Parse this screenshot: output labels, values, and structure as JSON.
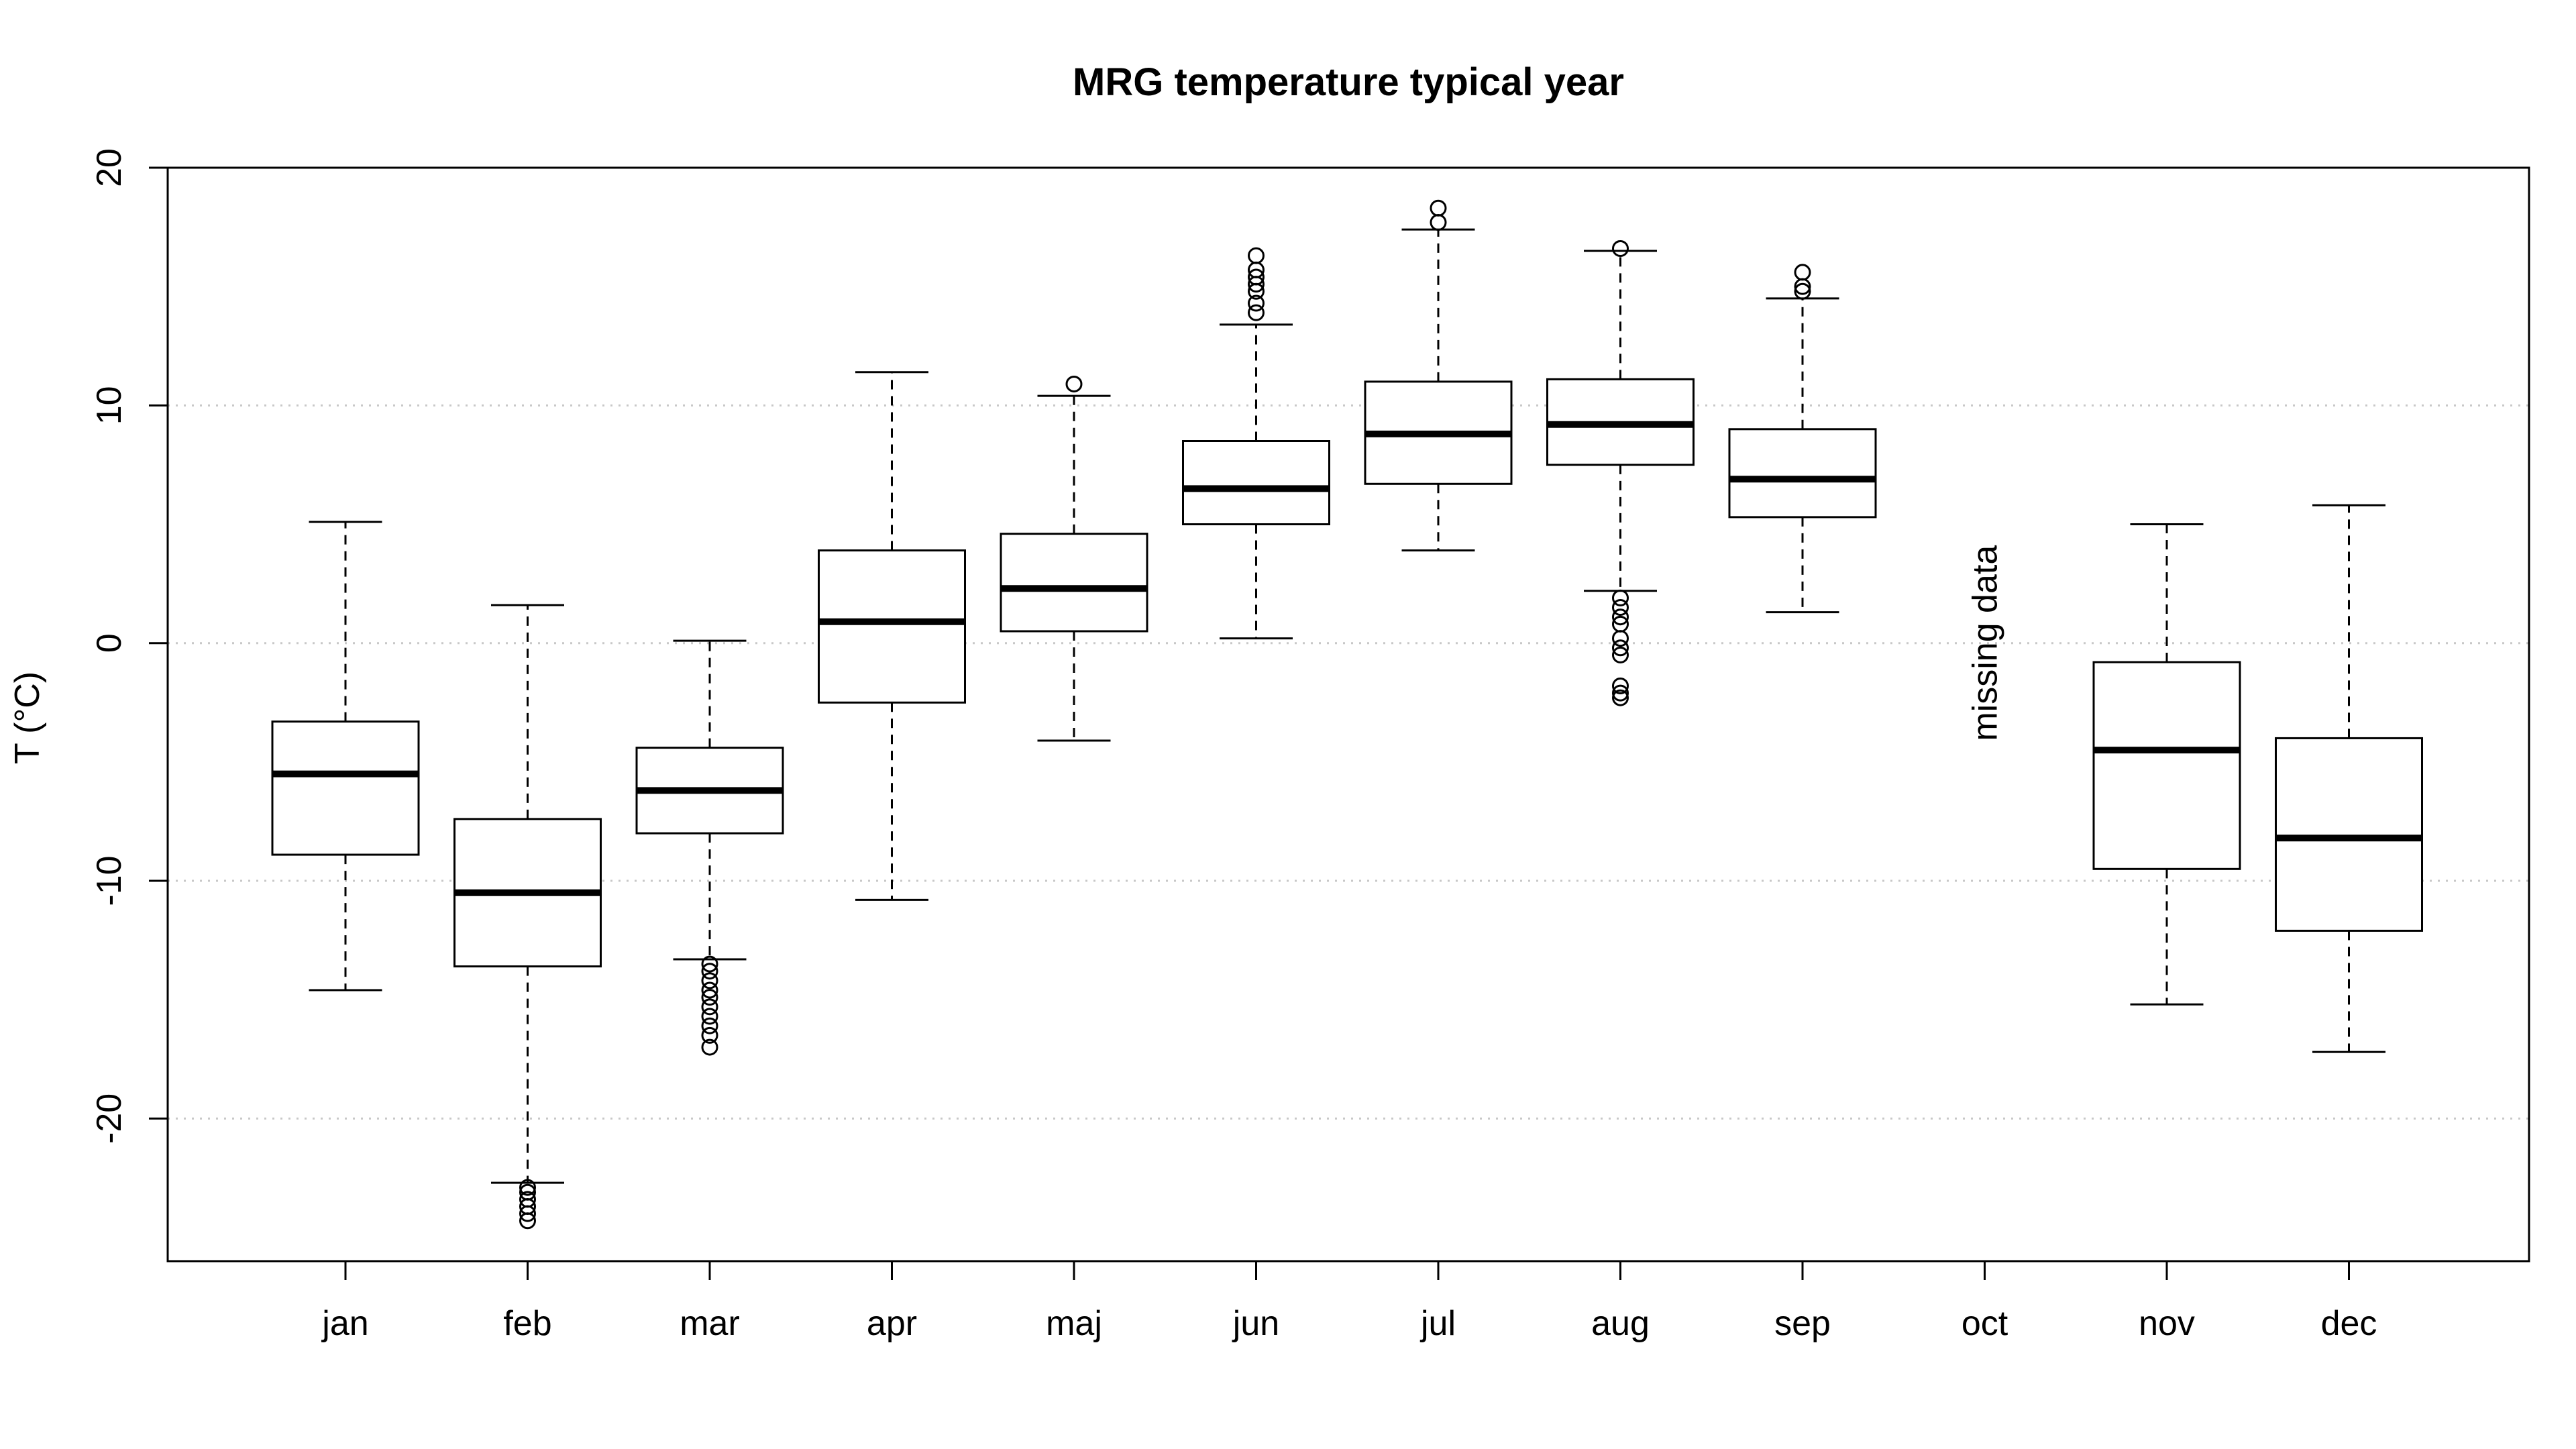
{
  "chart_data": {
    "type": "boxplot",
    "title": "MRG temperature typical year",
    "xlabel": "",
    "ylabel": "T (°C)",
    "ylim": [
      -26,
      20
    ],
    "yticks": [
      20,
      10,
      0,
      -10,
      -20
    ],
    "grid": "horizontal dotted",
    "categories": [
      "jan",
      "feb",
      "mar",
      "apr",
      "maj",
      "jun",
      "jul",
      "aug",
      "sep",
      "oct",
      "nov",
      "dec"
    ],
    "boxes": [
      {
        "month": "jan",
        "whisker_low": -14.6,
        "q1": -8.9,
        "median": -5.5,
        "q3": -3.3,
        "whisker_high": 5.1,
        "outliers": []
      },
      {
        "month": "feb",
        "whisker_low": -22.7,
        "q1": -13.6,
        "median": -10.5,
        "q3": -7.4,
        "whisker_high": 1.6,
        "outliers": [
          -22.9,
          -23.1,
          -23.4,
          -23.7,
          -24.0,
          -24.3
        ]
      },
      {
        "month": "mar",
        "whisker_low": -13.3,
        "q1": -8.0,
        "median": -6.2,
        "q3": -4.4,
        "whisker_high": 0.1,
        "outliers": [
          -13.5,
          -13.8,
          -14.2,
          -14.6,
          -14.9,
          -15.3,
          -15.7,
          -16.1,
          -16.5,
          -17.0
        ]
      },
      {
        "month": "apr",
        "whisker_low": -10.8,
        "q1": -2.5,
        "median": 0.9,
        "q3": 3.9,
        "whisker_high": 11.4,
        "outliers": []
      },
      {
        "month": "maj",
        "whisker_low": -4.1,
        "q1": 0.5,
        "median": 2.3,
        "q3": 4.6,
        "whisker_high": 10.4,
        "outliers": [
          10.9
        ]
      },
      {
        "month": "jun",
        "whisker_low": 0.2,
        "q1": 5.0,
        "median": 6.5,
        "q3": 8.5,
        "whisker_high": 13.4,
        "outliers": [
          13.9,
          14.3,
          14.8,
          15.1,
          15.4,
          15.7,
          16.3
        ]
      },
      {
        "month": "jul",
        "whisker_low": 3.9,
        "q1": 6.7,
        "median": 8.8,
        "q3": 11.0,
        "whisker_high": 17.4,
        "outliers": [
          17.7,
          18.3
        ]
      },
      {
        "month": "aug",
        "whisker_low": 2.2,
        "q1": 7.5,
        "median": 9.2,
        "q3": 11.1,
        "whisker_high": 16.5,
        "outliers": [
          16.6,
          1.9,
          1.5,
          1.1,
          0.8,
          0.2,
          -0.2,
          -0.5,
          -1.8,
          -2.1,
          -2.3
        ]
      },
      {
        "month": "sep",
        "whisker_low": 1.3,
        "q1": 5.3,
        "median": 6.9,
        "q3": 9.0,
        "whisker_high": 14.5,
        "outliers": [
          14.8,
          15.0,
          15.6
        ]
      },
      null,
      {
        "month": "nov",
        "whisker_low": -15.2,
        "q1": -9.5,
        "median": -4.5,
        "q3": -0.8,
        "whisker_high": 5.0,
        "outliers": []
      },
      {
        "month": "dec",
        "whisker_low": -17.2,
        "q1": -12.1,
        "median": -8.2,
        "q3": -4.0,
        "whisker_high": 5.8,
        "outliers": []
      }
    ],
    "annotations": [
      {
        "category": "oct",
        "y": 0,
        "text": "missing data",
        "rotation": "vertical"
      }
    ]
  }
}
